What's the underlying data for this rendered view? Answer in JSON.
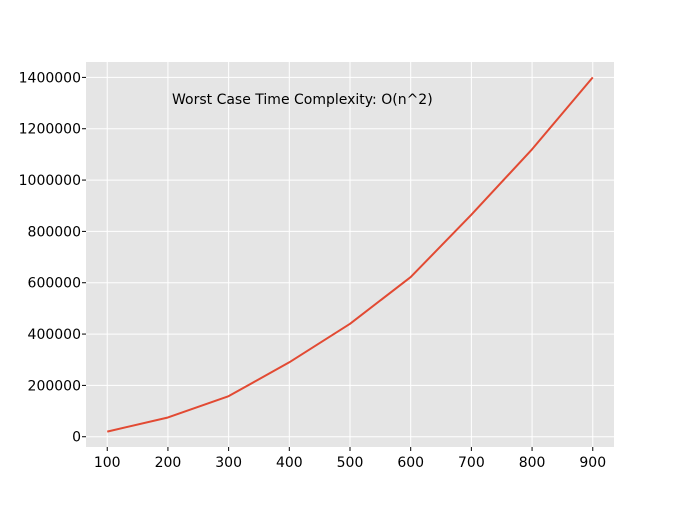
{
  "chart_data": {
    "type": "line",
    "title": "",
    "xlabel": "",
    "ylabel": "",
    "annotation": "Worst Case Time Complexity: O(n^2)",
    "x": [
      100,
      200,
      300,
      400,
      500,
      600,
      700,
      800,
      900
    ],
    "series": [
      {
        "values": [
          20000,
          75000,
          158000,
          290000,
          440000,
          622000,
          865000,
          1120000,
          1400000
        ],
        "color": "#e24a33"
      }
    ],
    "xlim": [
      65,
      935
    ],
    "ylim": [
      -40000,
      1460000
    ],
    "xticks": [
      100,
      200,
      300,
      400,
      500,
      600,
      700,
      800,
      900
    ],
    "yticks": [
      0,
      200000,
      400000,
      600000,
      800000,
      1000000,
      1200000,
      1400000
    ],
    "xtick_labels": [
      "100",
      "200",
      "300",
      "400",
      "500",
      "600",
      "700",
      "800",
      "900"
    ],
    "ytick_labels": [
      "0",
      "200000",
      "400000",
      "600000",
      "800000",
      "1000000",
      "1200000",
      "1400000"
    ],
    "grid": true,
    "background": "#e5e5e5",
    "grid_color": "#ffffff"
  }
}
